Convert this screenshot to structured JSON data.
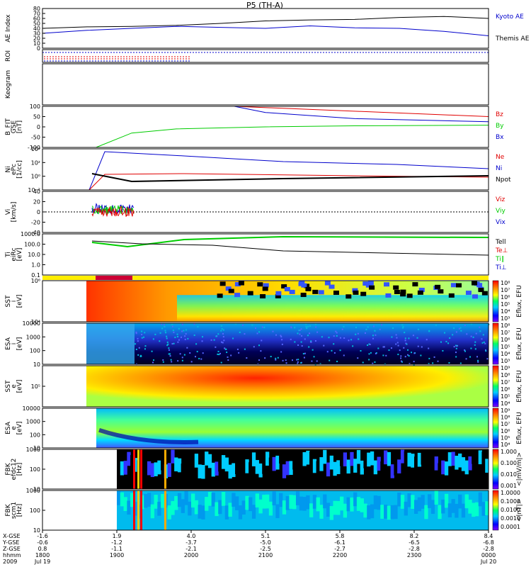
{
  "title": "P5 (TH-A)",
  "colors": {
    "kyoto": "#0000cc",
    "themis": "#000000",
    "red": "#e00000",
    "green": "#00cc00",
    "blue": "#0000cc",
    "black": "#000000",
    "yellow": "#ffee00",
    "crimson": "#cc0033"
  },
  "chart_data": [
    {
      "type": "line",
      "ylabel": "AE Index",
      "ylim": [
        0,
        80
      ],
      "yticks": [
        "80",
        "70",
        "60",
        "50",
        "40",
        "30",
        "20",
        "10",
        "0"
      ],
      "series": [
        {
          "name": "Kyoto AE",
          "color": "#0000cc",
          "x": [
            0,
            0.1,
            0.2,
            0.3,
            0.4,
            0.5,
            0.6,
            0.7,
            0.8,
            0.9,
            1.0
          ],
          "values": [
            30,
            36,
            40,
            44,
            42,
            40,
            45,
            41,
            40,
            34,
            25
          ]
        },
        {
          "name": "Themis AE",
          "color": "#000000",
          "x": [
            0,
            0.1,
            0.2,
            0.3,
            0.4,
            0.5,
            0.6,
            0.7,
            0.8,
            0.9,
            1.0
          ],
          "values": [
            40,
            43,
            44,
            46,
            50,
            55,
            57,
            58,
            62,
            64,
            60
          ]
        }
      ]
    },
    {
      "type": "line",
      "ylabel": "ROI"
    },
    {
      "type": "line",
      "ylabel": "Keogram"
    },
    {
      "type": "line",
      "ylabel": "B_FIT\nGSE\n[nT]",
      "ylim": [
        -100,
        100
      ],
      "yticks": [
        "100",
        "50",
        "0",
        "-50",
        "-100"
      ],
      "series": [
        {
          "name": "Bz",
          "color": "#e00000",
          "x": [
            0.43,
            1.0
          ],
          "values": [
            100,
            50
          ]
        },
        {
          "name": "By",
          "color": "#00cc00",
          "x": [
            0.12,
            0.2,
            0.3,
            0.5,
            0.7,
            1.0
          ],
          "values": [
            -100,
            -30,
            -10,
            0,
            5,
            8
          ]
        },
        {
          "name": "Bx",
          "color": "#0000cc",
          "x": [
            0.43,
            0.5,
            0.7,
            1.0
          ],
          "values": [
            100,
            70,
            40,
            25
          ]
        }
      ]
    },
    {
      "type": "line",
      "ylabel": "Ni\nePc\n[1/cc]",
      "yticks": [
        "10⁴",
        "10²",
        "10⁰",
        "10⁻²"
      ],
      "series": [
        {
          "name": "Ne",
          "color": "#e00000"
        },
        {
          "name": "Ni",
          "color": "#0000cc"
        },
        {
          "name": "Npot",
          "color": "#000000"
        }
      ]
    },
    {
      "type": "line",
      "ylabel": "Vi\n[km/s]",
      "ylim": [
        -40,
        40
      ],
      "yticks": [
        "40",
        "20",
        "0",
        "-20",
        "-40"
      ],
      "series": [
        {
          "name": "Viz",
          "color": "#e00000"
        },
        {
          "name": "Viy",
          "color": "#00cc00"
        },
        {
          "name": "Vix",
          "color": "#0000cc"
        }
      ]
    },
    {
      "type": "line",
      "ylabel": "Ti\neiRc\n[eV]",
      "yticks": [
        "1000.0",
        "100.0",
        "10.0",
        "1.0",
        "0.1"
      ],
      "series": [
        {
          "name": "Tell",
          "color": "#000000"
        },
        {
          "name": "Te⊥",
          "color": "#e00000"
        },
        {
          "name": "Ti∥",
          "color": "#00cc00"
        },
        {
          "name": "Ti⊥",
          "color": "#0000cc"
        }
      ]
    },
    {
      "type": "heatmap",
      "ylabel": "SST\ni\n[eV]",
      "yticks": [
        "10⁶",
        "10⁴"
      ],
      "colorbar": {
        "label": "Eflux, EFU",
        "ticks": [
          "10⁸",
          "10⁷",
          "10⁶",
          "10⁵",
          "10⁴",
          "10³"
        ]
      }
    },
    {
      "type": "heatmap",
      "ylabel": "ESA\ni\n[eV]",
      "yticks": [
        "10000",
        "1000",
        "100",
        "10"
      ],
      "colorbar": {
        "label": "Eflux, EFU",
        "ticks": [
          "10⁸",
          "10⁷",
          "10⁶",
          "10⁵",
          "10⁴",
          "10³"
        ]
      }
    },
    {
      "type": "heatmap",
      "ylabel": "SST\ne\n[eV]",
      "yticks": [
        "10⁵"
      ],
      "colorbar": {
        "label": "Eflux, EFU",
        "ticks": [
          "10⁹",
          "10⁸",
          "10⁷",
          "10⁶",
          "10⁵",
          "10⁴"
        ]
      }
    },
    {
      "type": "heatmap",
      "ylabel": "ESA\ne\n[eV]",
      "yticks": [
        "10000",
        "1000",
        "100",
        "10"
      ],
      "colorbar": {
        "label": "Eflux, EFU",
        "ticks": [
          "10⁹",
          "10⁸",
          "10⁷",
          "10⁶",
          "10⁵",
          "10⁴"
        ]
      }
    },
    {
      "type": "heatmap",
      "ylabel": "FBK\nefdc12\n[Hz]",
      "yticks": [
        "1000",
        "100",
        "10"
      ],
      "colorbar": {
        "label": "<|mV/m|>",
        "ticks": [
          "1.000",
          "0.100",
          "0.010",
          "0.001"
        ]
      }
    },
    {
      "type": "heatmap",
      "ylabel": "FBK\nscm1\n[Hz]",
      "yticks": [
        "1000",
        "100",
        "10"
      ],
      "colorbar": {
        "label": "<|nT|>",
        "ticks": [
          "1.0000",
          "0.1000",
          "0.0100",
          "0.0010",
          "0.0001"
        ]
      }
    }
  ],
  "xaxis": {
    "row_labels": [
      "X-GSE",
      "Y-GSE",
      "Z-GSE",
      "hhmm",
      "2009"
    ],
    "columns": [
      {
        "v": [
          "-1.6",
          "-0.6",
          "0.8",
          "1800",
          "Jul 19"
        ]
      },
      {
        "v": [
          "1.9",
          "-1.2",
          "-1.1",
          "1900",
          ""
        ]
      },
      {
        "v": [
          "4.0",
          "-3.7",
          "-2.1",
          "2000",
          ""
        ]
      },
      {
        "v": [
          "5.1",
          "-5.0",
          "-2.5",
          "2100",
          ""
        ]
      },
      {
        "v": [
          "5.8",
          "-6.1",
          "-2.7",
          "2200",
          ""
        ]
      },
      {
        "v": [
          "8.2",
          "-6.5",
          "-2.8",
          "2300",
          ""
        ]
      },
      {
        "v": [
          "8.4",
          "-6.8",
          "-2.8",
          "0000",
          "Jul 20"
        ]
      }
    ]
  }
}
